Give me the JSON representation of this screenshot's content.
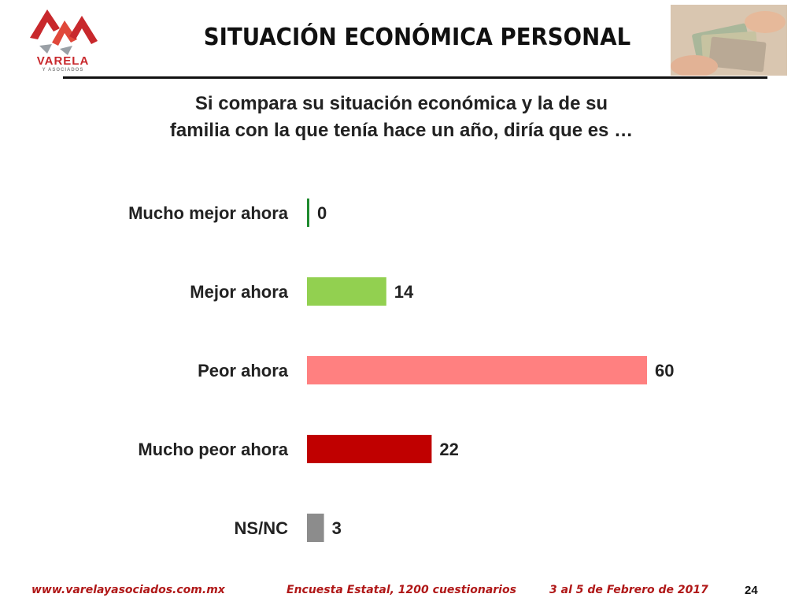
{
  "slide": {
    "title": "SITUACIÓN ECONÓMICA PERSONAL",
    "question_line1": "Si compara su situación económica y la de su",
    "question_line2": "familia con la que tenía hace un año, diría que es …",
    "logo_text": "VARELA",
    "logo_subtext": "Y ASOCIADOS"
  },
  "footer": {
    "website": "www.varelayasociados.com.mx",
    "survey": "Encuesta Estatal, 1200 cuestionarios",
    "dates": "3 al 5 de Febrero de 2017",
    "page_number": "24"
  },
  "chart_data": {
    "type": "bar",
    "orientation": "horizontal",
    "categories": [
      "Mucho mejor ahora",
      "Mejor ahora",
      "Peor ahora",
      "Mucho peor ahora",
      "NS/NC"
    ],
    "values": [
      0,
      14,
      60,
      22,
      3
    ],
    "value_labels": [
      "0",
      "14",
      "60",
      "22",
      "3"
    ],
    "colors": [
      "#1e8a2e",
      "#92d050",
      "#ff8080",
      "#c00000",
      "#8c8c8c"
    ],
    "xlim": [
      0,
      60
    ],
    "grid": false,
    "title": "",
    "xlabel": "",
    "ylabel": ""
  }
}
